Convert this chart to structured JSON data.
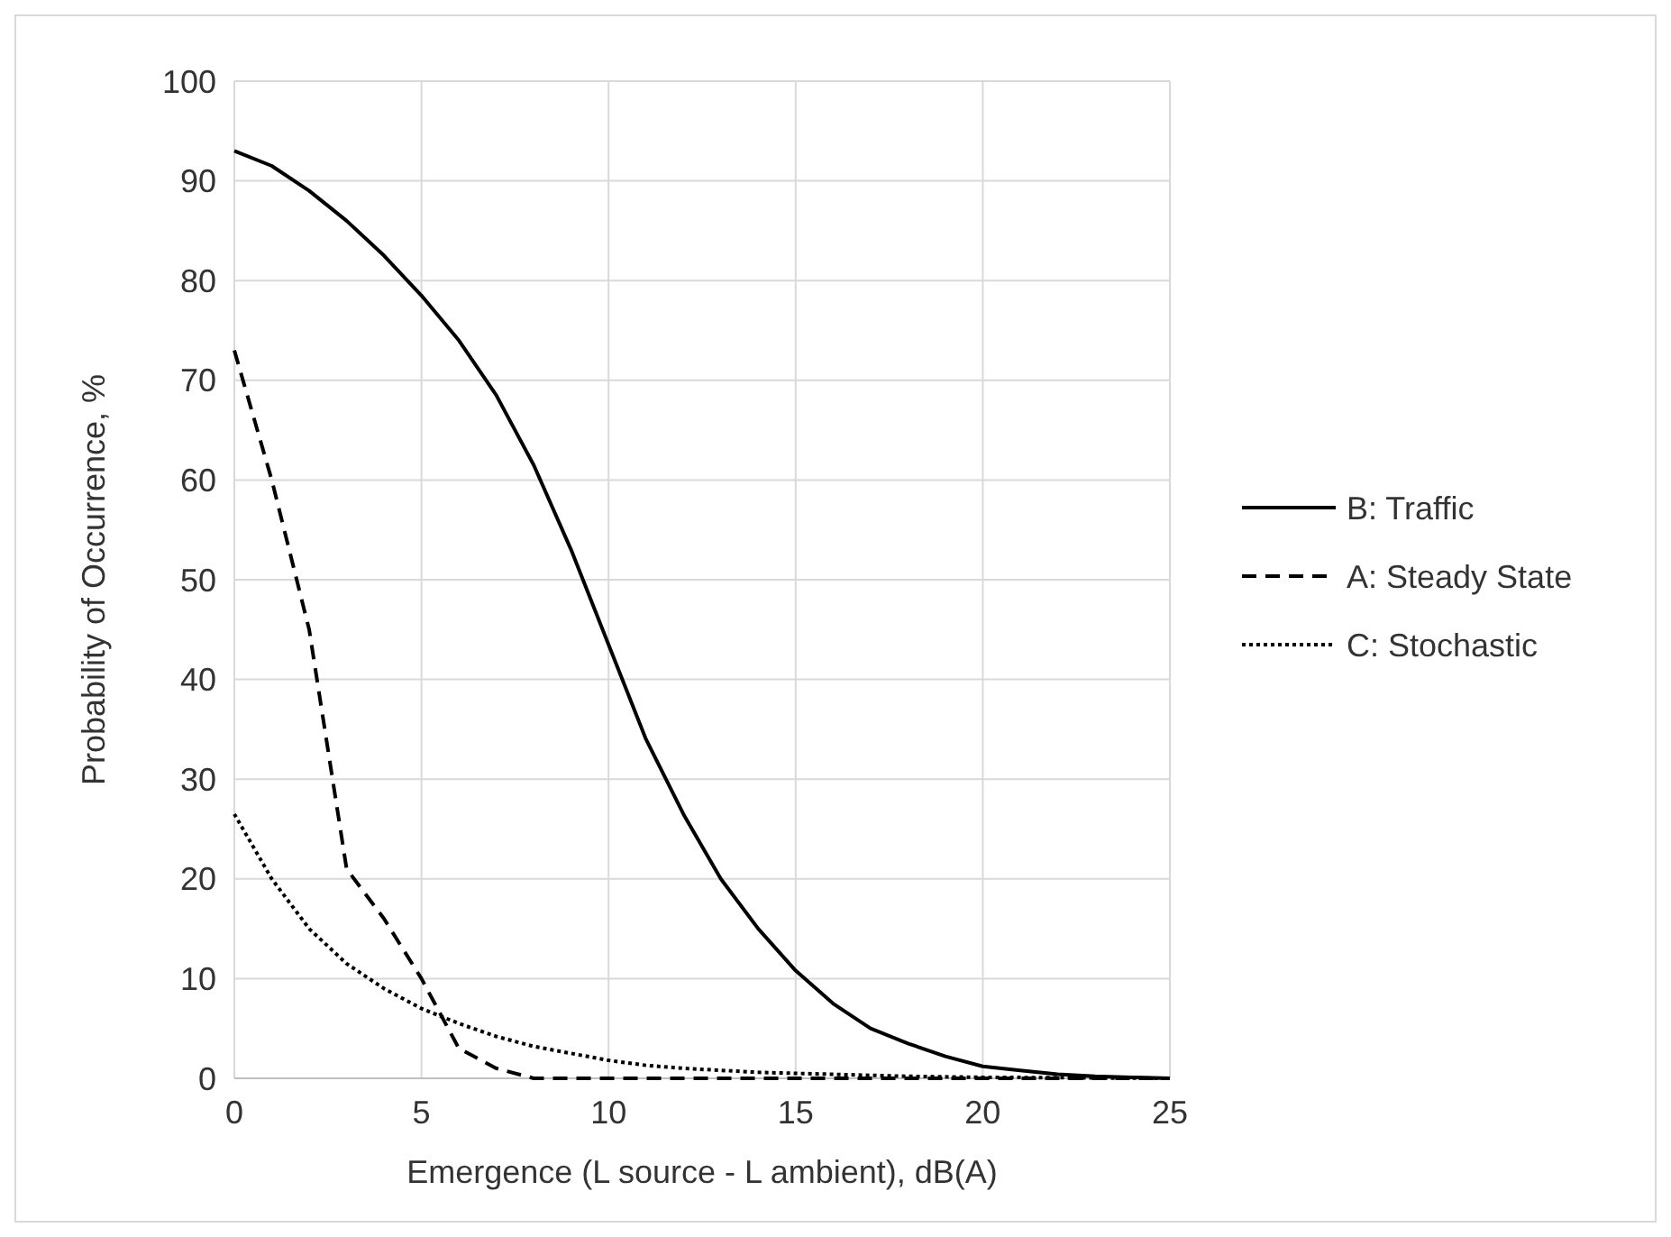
{
  "chart_data": {
    "type": "line",
    "xlabel": "Emergence (L source - L ambient), dB(A)",
    "ylabel": "Probability of Occurrence, %",
    "xlim": [
      0,
      25
    ],
    "xticks": [
      0,
      5,
      10,
      15,
      20,
      25
    ],
    "ylim": [
      0,
      100
    ],
    "yticks": [
      0,
      10,
      20,
      30,
      40,
      50,
      60,
      70,
      80,
      90,
      100
    ],
    "grid": true,
    "legend": "right",
    "marker": "none",
    "series": [
      {
        "name": "B:  Traffic",
        "color": "#000000",
        "line_style": "solid",
        "x": [
          0,
          1,
          2,
          3,
          4,
          5,
          6,
          7,
          8,
          9,
          10,
          11,
          12,
          13,
          14,
          15,
          16,
          17,
          18,
          19,
          20,
          21,
          22,
          23,
          24,
          25
        ],
        "values": [
          93,
          91.5,
          89,
          86,
          82.5,
          78.5,
          74,
          68.5,
          61.5,
          53,
          43.5,
          34,
          26.5,
          20,
          15,
          10.8,
          7.5,
          5,
          3.5,
          2.2,
          1.2,
          0.8,
          0.4,
          0.2,
          0.1,
          0
        ]
      },
      {
        "name": "A:  Steady State",
        "color": "#000000",
        "line_style": "dashed",
        "x": [
          0,
          1,
          2,
          3,
          4,
          5,
          6,
          7,
          8,
          10,
          15,
          20,
          25
        ],
        "values": [
          73,
          60,
          45,
          21,
          16,
          10,
          3,
          1,
          0,
          0,
          0,
          0,
          0
        ]
      },
      {
        "name": "C:  Stochastic",
        "color": "#000000",
        "line_style": "dotted",
        "x": [
          0,
          1,
          2,
          3,
          4,
          5,
          6,
          7,
          8,
          9,
          10,
          11,
          12,
          13,
          14,
          15,
          16,
          17,
          18,
          20,
          25
        ],
        "values": [
          26.5,
          20,
          15,
          11.5,
          9,
          7,
          5.5,
          4.2,
          3.2,
          2.5,
          1.8,
          1.3,
          1,
          0.8,
          0.6,
          0.5,
          0.4,
          0.3,
          0.2,
          0.1,
          0
        ]
      }
    ]
  }
}
